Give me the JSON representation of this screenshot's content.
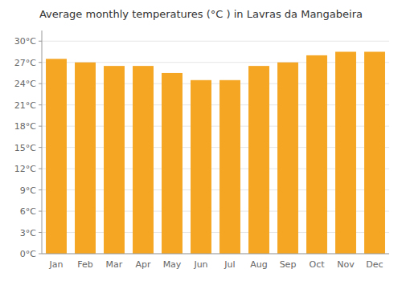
{
  "chart_data": {
    "type": "bar",
    "title": "Average monthly temperatures (°C ) in Lavras da Mangabeira",
    "categories": [
      "Jan",
      "Feb",
      "Mar",
      "Apr",
      "May",
      "Jun",
      "Jul",
      "Aug",
      "Sep",
      "Oct",
      "Nov",
      "Dec"
    ],
    "values": [
      27.5,
      27.0,
      26.5,
      26.5,
      25.5,
      24.5,
      24.5,
      26.5,
      27.0,
      28.0,
      28.5,
      28.5
    ],
    "color": "#F5A623",
    "ylim": [
      0,
      31.5
    ],
    "yticks": [
      {
        "value": 0,
        "label": "0°C"
      },
      {
        "value": 3,
        "label": "3°C"
      },
      {
        "value": 6,
        "label": "6°C"
      },
      {
        "value": 9,
        "label": "9°C"
      },
      {
        "value": 12,
        "label": "12°C"
      },
      {
        "value": 15,
        "label": "15°C"
      },
      {
        "value": 18,
        "label": "18°C"
      },
      {
        "value": 21,
        "label": "21°C"
      },
      {
        "value": 24,
        "label": "24°C"
      },
      {
        "value": 27,
        "label": "27°C"
      },
      {
        "value": 30,
        "label": "30°C"
      }
    ],
    "grid": true
  }
}
